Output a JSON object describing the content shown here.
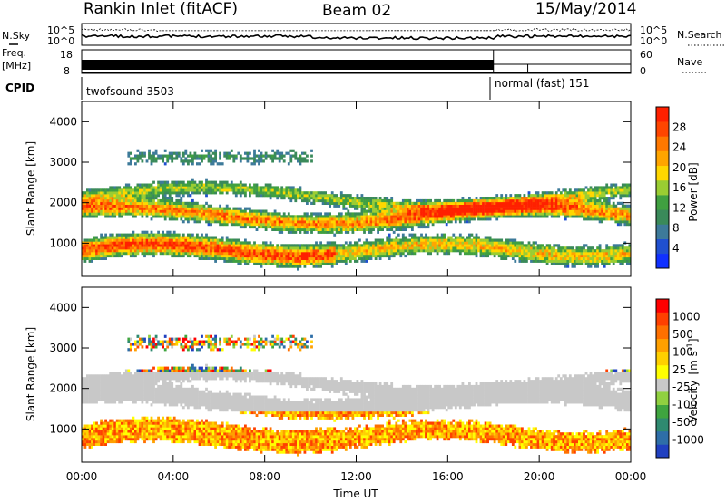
{
  "header": {
    "station": "Rankin Inlet (fitACF)",
    "beam": "Beam 02",
    "date": "15/May/2014"
  },
  "top_panels": {
    "nsky_label": "N.Sky",
    "nsky_top": "10^5",
    "nsky_bottom": "10^0",
    "nsearch_label": "N.Search",
    "nsearch_top": "10^5",
    "nsearch_bottom": "10^0",
    "freq_label": "Freq.",
    "freq_unit": "[MHz]",
    "freq_top": "18",
    "freq_bottom": "8",
    "nave_label": "Nave",
    "nave_top": "60",
    "nave_bottom": "0",
    "cpid_label": "CPID",
    "cpid_modes": [
      {
        "name": "twofsound 3503",
        "start_hour": 0
      },
      {
        "name": "normal (fast) 151",
        "start_hour": 18
      }
    ]
  },
  "chart_data": [
    {
      "type": "heatmap",
      "panel": "power",
      "ylabel": "Slant Range [km]",
      "xlabel": "",
      "ylim": [
        180,
        4500
      ],
      "yticks": [
        "1000",
        "2000",
        "3000",
        "4000"
      ],
      "xlim": [
        0,
        24
      ],
      "xticks": [
        "00:00",
        "04:00",
        "08:00",
        "12:00",
        "16:00",
        "20:00",
        "00:00"
      ],
      "colorbar": {
        "title": "Power [dB]",
        "ticks": [
          "4",
          "8",
          "12",
          "16",
          "20",
          "24",
          "28"
        ],
        "colors": [
          "#1030ff",
          "#2050d0",
          "#3d7a9a",
          "#3a8a5a",
          "#40a040",
          "#9acd32",
          "#ffd700",
          "#ffa500",
          "#ff7800",
          "#ff4500",
          "#ff2000"
        ]
      }
    },
    {
      "type": "heatmap",
      "panel": "velocity",
      "ylabel": "Slant Range [km]",
      "xlabel": "Time UT",
      "ylim": [
        180,
        4500
      ],
      "yticks": [
        "1000",
        "2000",
        "3000",
        "4000"
      ],
      "xlim": [
        0,
        24
      ],
      "xticks": [
        "00:00",
        "04:00",
        "08:00",
        "12:00",
        "16:00",
        "20:00",
        "00:00"
      ],
      "colorbar": {
        "title": "Velocity",
        "unit_base": "[m s",
        "unit_exp": "-1",
        "unit_end": "]",
        "ticks": [
          "1000",
          "500",
          "100",
          "25",
          "-25",
          "-100",
          "-500",
          "-1000"
        ],
        "colors": [
          "#2040c0",
          "#2e6ea8",
          "#2f8a70",
          "#3fa53f",
          "#90d040",
          "#c8c8c8",
          "#ffff00",
          "#ffd000",
          "#ffa000",
          "#ff7000",
          "#ff4000",
          "#ff0000"
        ]
      }
    }
  ]
}
